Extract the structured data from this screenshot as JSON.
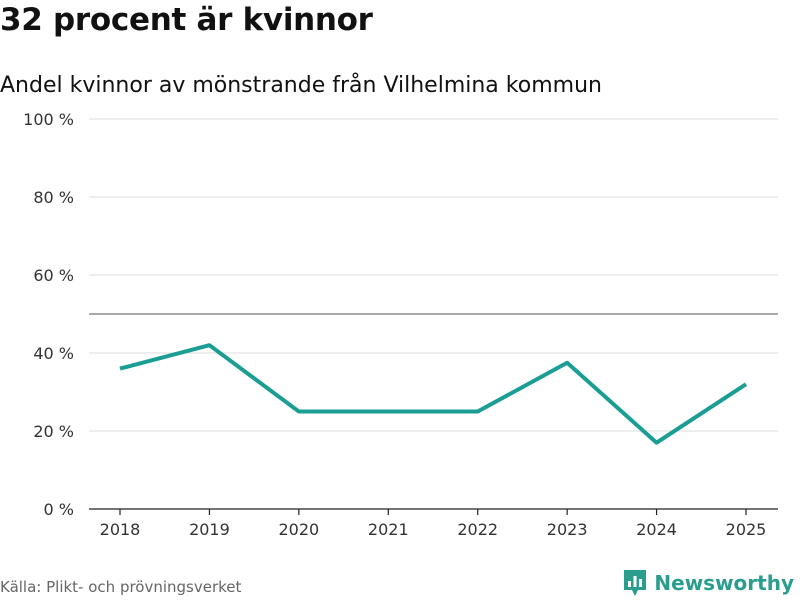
{
  "header": {
    "title": "32 procent är kvinnor",
    "subtitle": "Andel kvinnor av mönstrande från Vilhelmina kommun"
  },
  "footer": {
    "source": "Källa: Plikt- och prövningsverket",
    "brand": "Newsworthy",
    "brand_icon": "bar-chart-logo-icon"
  },
  "colors": {
    "line": "#1a9e94",
    "brand": "#2a9d8f",
    "grid": "#dddddd",
    "reference": "#777777",
    "axis": "#222222"
  },
  "chart_data": {
    "type": "line",
    "title": "",
    "xlabel": "",
    "ylabel": "",
    "x": [
      "2018",
      "2019",
      "2020",
      "2021",
      "2022",
      "2023",
      "2024",
      "2025"
    ],
    "series": [
      {
        "values": [
          36,
          42,
          25,
          25,
          25,
          37.5,
          17,
          32
        ]
      }
    ],
    "ylim": [
      0,
      100
    ],
    "yticks": [
      0,
      20,
      40,
      60,
      80,
      100
    ],
    "ytick_labels": [
      "0 %",
      "20 %",
      "40 %",
      "60 %",
      "80 %",
      "100 %"
    ],
    "reference_line": 50,
    "grid": true,
    "legend": "none"
  }
}
